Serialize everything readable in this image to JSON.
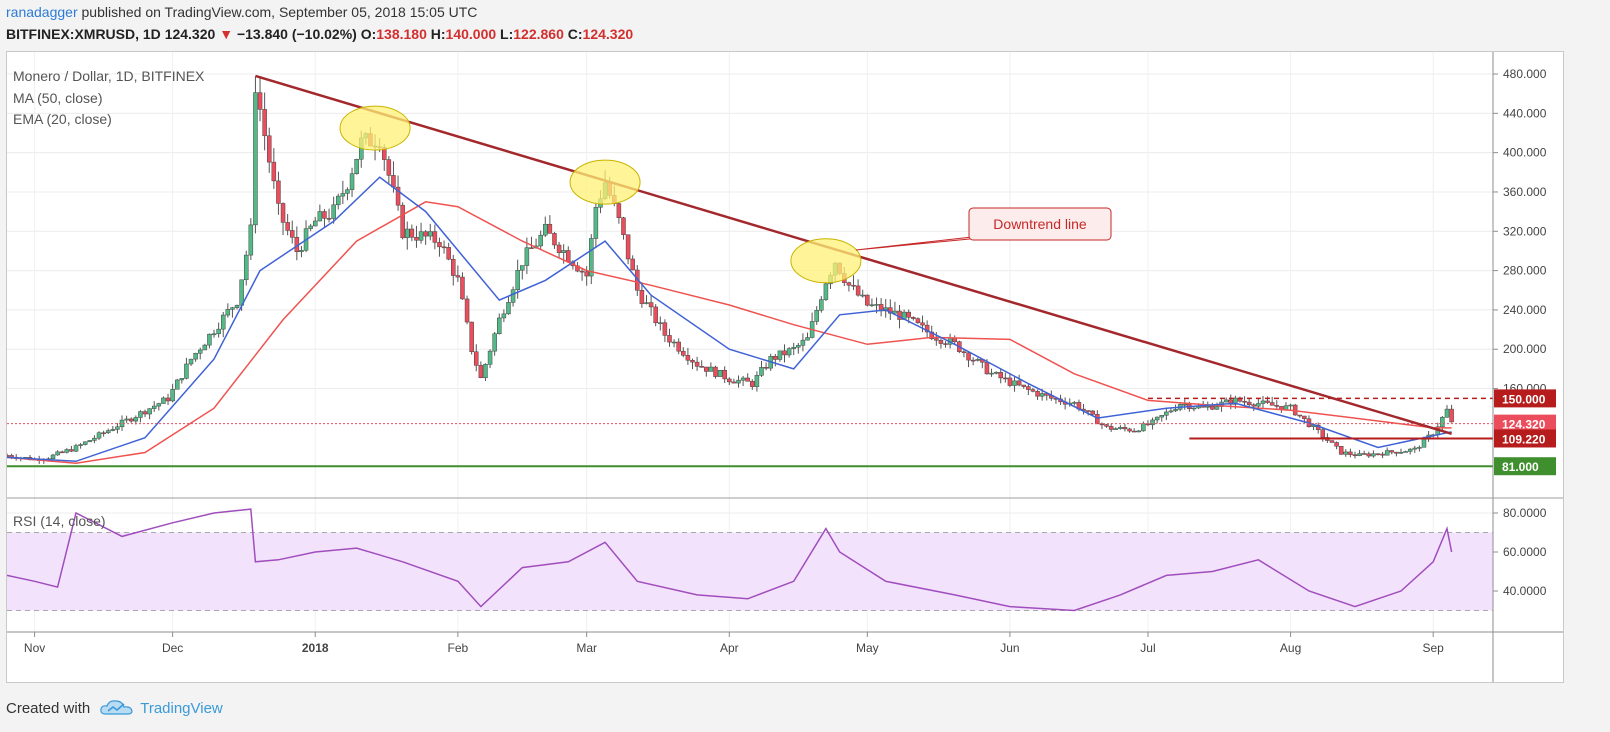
{
  "header": {
    "author": "ranadagger",
    "published": "published on TradingView.com, September 05, 2018 15:05 UTC",
    "symbol": "BITFINEX:XMRUSD, 1D",
    "last": "124.320",
    "change_arrow": "▼",
    "change": "−13.840 (−10.02%)",
    "o_label": "O:",
    "o_value": "138.180",
    "h_label": "H:",
    "h_value": "140.000",
    "l_label": "L:",
    "l_value": "122.860",
    "c_label": "C:",
    "c_value": "124.320"
  },
  "legend": {
    "title": "Monero / Dollar, 1D, BITFINEX",
    "ma": "MA (50, close)",
    "ema": "EMA (20, close)",
    "rsi": "RSI (14, close)"
  },
  "annotation": {
    "callout": "Downtrend line"
  },
  "footer": {
    "created_with": "Created with",
    "brand": "TradingView",
    "logo_icon": "tradingview-cloud-icon"
  },
  "colors": {
    "up": "#53b987",
    "down": "#eb4d5c",
    "ema": "#3f62d6",
    "ma": "#ef5350",
    "trendline": "#a3282d",
    "support": "#3f8f2f",
    "resistance": "#b71c1c",
    "rsi": "#a04ebd",
    "rsi_band": "#f3e2fb",
    "highlight": "#fff176"
  },
  "chart_data": [
    {
      "type": "line",
      "title": "Monero / Dollar, 1D, BITFINEX",
      "chart_style": "candlestick",
      "ylim": [
        60,
        490
      ],
      "y_ticks": [
        "480.000",
        "440.000",
        "400.000",
        "360.000",
        "320.000",
        "280.000",
        "240.000",
        "200.000",
        "160.000"
      ],
      "x_ticks": [
        "Nov",
        "Dec",
        "2018",
        "Feb",
        "Mar",
        "Apr",
        "May",
        "Jun",
        "Jul",
        "Aug",
        "Sep"
      ],
      "price_labels": [
        {
          "value": 150,
          "label": "150.000",
          "color": "#b71c1c"
        },
        {
          "value": 124.32,
          "label": "124.320",
          "color": "#eb4d5c"
        },
        {
          "value": 109.22,
          "label": "109.220",
          "color": "#b71c1c"
        },
        {
          "value": 81,
          "label": "81.000",
          "color": "#3f8f2f"
        }
      ],
      "series": [
        {
          "name": "Monero / Dollar, 1D, BITFINEX",
          "x": [
            "2017-10-26",
            "2017-11-01",
            "2017-11-04",
            "2017-11-10",
            "2017-11-20",
            "2017-11-30",
            "2017-12-05",
            "2017-12-10",
            "2017-12-15",
            "2017-12-18",
            "2017-12-19",
            "2017-12-24",
            "2017-12-28",
            "2018-01-01",
            "2018-01-05",
            "2018-01-08",
            "2018-01-11",
            "2018-01-15",
            "2018-01-20",
            "2018-01-28",
            "2018-02-01",
            "2018-02-04",
            "2018-02-06",
            "2018-02-10",
            "2018-02-15",
            "2018-02-20",
            "2018-02-25",
            "2018-03-01",
            "2018-03-03",
            "2018-03-05",
            "2018-03-08",
            "2018-03-12",
            "2018-03-18",
            "2018-03-25",
            "2018-04-01",
            "2018-04-06",
            "2018-04-10",
            "2018-04-15",
            "2018-04-18",
            "2018-04-22",
            "2018-04-24",
            "2018-04-27",
            "2018-05-01",
            "2018-05-08",
            "2018-05-15",
            "2018-05-20",
            "2018-05-28",
            "2018-06-04",
            "2018-06-10",
            "2018-06-15",
            "2018-06-22",
            "2018-06-28",
            "2018-07-02",
            "2018-07-08",
            "2018-07-13",
            "2018-07-20",
            "2018-07-25",
            "2018-08-01",
            "2018-08-06",
            "2018-08-12",
            "2018-08-16",
            "2018-08-22",
            "2018-08-28",
            "2018-09-01",
            "2018-09-03",
            "2018-09-04",
            "2018-09-05"
          ],
          "values": [
            92,
            88,
            90,
            100,
            125,
            150,
            190,
            220,
            250,
            320,
            470,
            340,
            300,
            330,
            340,
            370,
            410,
            415,
            320,
            310,
            270,
            200,
            170,
            230,
            290,
            320,
            295,
            275,
            345,
            370,
            330,
            260,
            215,
            185,
            170,
            165,
            190,
            200,
            210,
            270,
            290,
            265,
            245,
            235,
            215,
            205,
            175,
            160,
            150,
            145,
            120,
            118,
            125,
            145,
            140,
            148,
            145,
            140,
            120,
            95,
            92,
            95,
            98,
            115,
            130,
            138,
            124.32
          ]
        },
        {
          "name": "MA (50, close)",
          "x": [
            "2017-10-26",
            "2017-11-10",
            "2017-11-25",
            "2017-12-10",
            "2017-12-25",
            "2018-01-10",
            "2018-01-25",
            "2018-02-01",
            "2018-02-15",
            "2018-03-01",
            "2018-03-15",
            "2018-04-01",
            "2018-04-15",
            "2018-05-01",
            "2018-05-15",
            "2018-06-01",
            "2018-06-15",
            "2018-07-01",
            "2018-07-15",
            "2018-08-01",
            "2018-08-15",
            "2018-09-01",
            "2018-09-05"
          ],
          "values": [
            90,
            84,
            95,
            140,
            230,
            310,
            350,
            345,
            310,
            280,
            265,
            245,
            225,
            205,
            212,
            210,
            175,
            148,
            143,
            138,
            130,
            120,
            120
          ]
        },
        {
          "name": "EMA (20, close)",
          "x": [
            "2017-10-26",
            "2017-11-10",
            "2017-11-25",
            "2017-12-10",
            "2017-12-20",
            "2018-01-05",
            "2018-01-15",
            "2018-01-25",
            "2018-02-10",
            "2018-02-20",
            "2018-03-05",
            "2018-03-15",
            "2018-04-01",
            "2018-04-15",
            "2018-04-25",
            "2018-05-05",
            "2018-05-20",
            "2018-06-05",
            "2018-06-20",
            "2018-07-05",
            "2018-07-20",
            "2018-08-05",
            "2018-08-20",
            "2018-09-05"
          ],
          "values": [
            90,
            86,
            110,
            190,
            280,
            330,
            375,
            340,
            250,
            270,
            310,
            255,
            200,
            180,
            235,
            240,
            205,
            165,
            130,
            140,
            145,
            125,
            100,
            116
          ]
        }
      ],
      "levels": [
        {
          "name": "150.000",
          "value": 150
        },
        {
          "name": "109.220",
          "value": 109.22
        },
        {
          "name": "81.000",
          "value": 81
        }
      ],
      "trendline": {
        "name": "Downtrend line",
        "x": [
          "2017-12-19",
          "2018-09-05"
        ],
        "values": [
          478,
          114
        ]
      },
      "highlighted_highs": [
        {
          "x": "2018-01-14",
          "value": 425
        },
        {
          "x": "2018-03-05",
          "value": 370
        },
        {
          "x": "2018-04-22",
          "value": 290
        }
      ]
    },
    {
      "type": "line",
      "title": "RSI (14, close)",
      "ylim": [
        20,
        90
      ],
      "y_ticks": [
        "80.0000",
        "60.0000",
        "40.0000"
      ],
      "bands": [
        30,
        70
      ],
      "series": [
        {
          "name": "RSI (14, close)",
          "x": [
            "2017-10-26",
            "2017-11-01",
            "2017-11-06",
            "2017-11-10",
            "2017-11-20",
            "2017-12-01",
            "2017-12-10",
            "2017-12-18",
            "2017-12-19",
            "2017-12-24",
            "2018-01-01",
            "2018-01-10",
            "2018-01-20",
            "2018-02-01",
            "2018-02-06",
            "2018-02-15",
            "2018-02-25",
            "2018-03-05",
            "2018-03-12",
            "2018-03-25",
            "2018-04-05",
            "2018-04-15",
            "2018-04-22",
            "2018-04-25",
            "2018-05-05",
            "2018-05-20",
            "2018-06-01",
            "2018-06-15",
            "2018-06-25",
            "2018-07-05",
            "2018-07-15",
            "2018-07-25",
            "2018-08-05",
            "2018-08-15",
            "2018-08-25",
            "2018-09-01",
            "2018-09-04",
            "2018-09-05"
          ],
          "values": [
            48,
            45,
            42,
            80,
            68,
            75,
            80,
            82,
            55,
            56,
            60,
            62,
            55,
            45,
            32,
            52,
            55,
            65,
            45,
            38,
            36,
            45,
            72,
            60,
            45,
            38,
            32,
            30,
            38,
            48,
            50,
            56,
            40,
            32,
            40,
            55,
            72,
            60
          ]
        }
      ]
    }
  ]
}
